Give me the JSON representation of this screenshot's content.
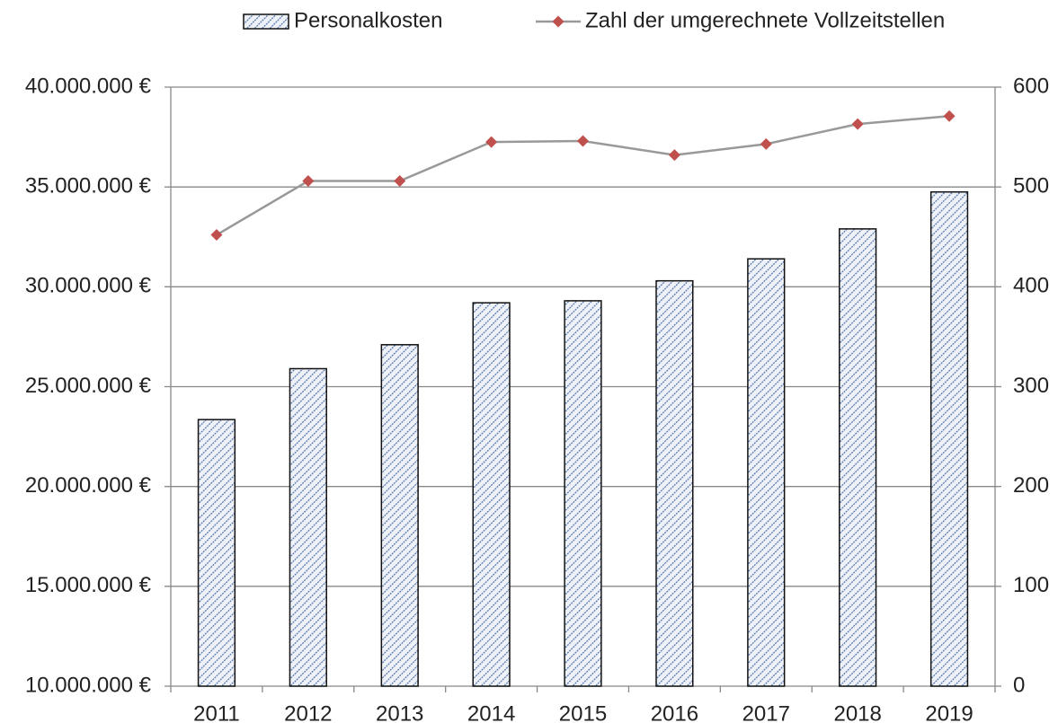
{
  "chart_data": {
    "type": "bar",
    "categories": [
      "2011",
      "2012",
      "2013",
      "2014",
      "2015",
      "2016",
      "2017",
      "2018",
      "2019"
    ],
    "series": [
      {
        "name": "Personalkosten",
        "type": "bar",
        "color": "#4f6fa8",
        "values": [
          23350000,
          25900000,
          27100000,
          29200000,
          29300000,
          30300000,
          31400000,
          32900000,
          34750000
        ]
      },
      {
        "name": "Zahl der umgerechnete Vollzeitstellen",
        "type": "line",
        "axis": "y2",
        "color": "#999999",
        "marker_color": "#c0504d",
        "values": [
          452,
          506,
          506,
          545,
          546,
          532,
          543,
          563,
          571
        ]
      }
    ],
    "ylim": [
      10000000,
      40000000
    ],
    "yticks": [
      {
        "value": 10000000,
        "label": "10.000.000 €"
      },
      {
        "value": 15000000,
        "label": "15.000.000 €"
      },
      {
        "value": 20000000,
        "label": "20.000.000 €"
      },
      {
        "value": 25000000,
        "label": "25.000.000 €"
      },
      {
        "value": 30000000,
        "label": "30.000.000 €"
      },
      {
        "value": 35000000,
        "label": "35.000.000 €"
      },
      {
        "value": 40000000,
        "label": "40.000.000 €"
      }
    ],
    "y2lim": [
      0,
      600
    ],
    "y2ticks": [
      0,
      100,
      200,
      300,
      400,
      500,
      600
    ],
    "grid": true,
    "legend": "top"
  }
}
